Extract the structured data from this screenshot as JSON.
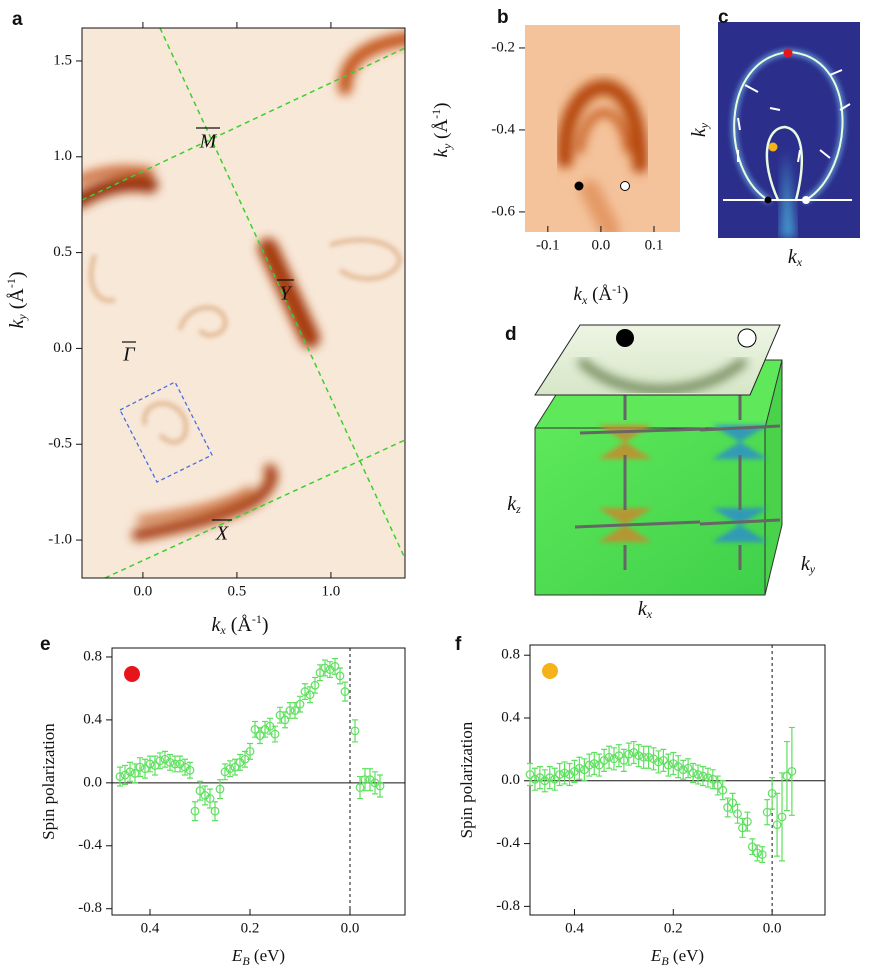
{
  "chart_data": [
    {
      "type": "image",
      "panel": "a",
      "xlim": [
        -0.324,
        1.394
      ],
      "xticks": [
        {
          "value": 0,
          "label": "0.0"
        },
        0.5,
        {
          "value": 1,
          "label": "1.0"
        }
      ],
      "ylim": [
        -1.198,
        1.672
      ],
      "yticks": [
        1.5,
        {
          "value": 1,
          "label": "1.0"
        },
        0.5,
        {
          "value": 0,
          "label": "0.0"
        },
        -0.5,
        {
          "value": -1,
          "label": "-1.0"
        }
      ],
      "xlabel": [
        "k",
        "x",
        " (Å",
        "-1",
        ")"
      ],
      "ylabel": [
        "k",
        "y",
        " (Å",
        "-1",
        ")"
      ],
      "annotations": [
        "M",
        "Y",
        "Γ",
        "X"
      ]
    },
    {
      "type": "image",
      "panel": "b",
      "xlim": [
        -0.143,
        0.149
      ],
      "xticks": [
        -0.1,
        {
          "value": 0,
          "label": "0.0"
        },
        0.1
      ],
      "ylim": [
        -0.649,
        -0.144
      ],
      "yticks": [
        -0.2,
        -0.4,
        -0.6
      ],
      "xlabel": [
        "k",
        "x",
        " (Å",
        "-1",
        ")"
      ],
      "ylabel": [
        "k",
        "y",
        " (Å",
        "-1",
        ")"
      ]
    },
    {
      "type": "image",
      "panel": "c",
      "xlabel": [
        "k",
        "x"
      ],
      "ylabel": [
        "k",
        "y"
      ]
    },
    {
      "type": "image",
      "panel": "d",
      "xlabel": [
        "k",
        "x"
      ],
      "ylabel": [
        "k",
        "y"
      ],
      "zlabel": [
        "k",
        "z"
      ]
    },
    {
      "type": "scatter",
      "panel": "e",
      "color": "#5ee05e",
      "indicator_color": "#e8141b",
      "xlim": [
        0.476,
        -0.11
      ],
      "xticks": [
        0.4,
        0.2,
        {
          "value": 0,
          "label": "0.0"
        }
      ],
      "ylim": [
        -0.84,
        0.857
      ],
      "yticks": [
        0.8,
        0.4,
        {
          "value": 0,
          "label": "0.0"
        },
        -0.4,
        -0.8
      ],
      "hline": 0,
      "vline": 0,
      "xlabel": [
        "E",
        "B",
        " (eV)"
      ],
      "ylabel": "Spin polarization",
      "x": [
        0.46,
        0.45,
        0.44,
        0.43,
        0.42,
        0.41,
        0.4,
        0.39,
        0.38,
        0.37,
        0.36,
        0.35,
        0.34,
        0.33,
        0.32,
        0.31,
        0.3,
        0.29,
        0.28,
        0.27,
        0.26,
        0.25,
        0.24,
        0.23,
        0.22,
        0.21,
        0.2,
        0.19,
        0.18,
        0.17,
        0.16,
        0.15,
        0.14,
        0.13,
        0.12,
        0.11,
        0.1,
        0.09,
        0.08,
        0.07,
        0.06,
        0.05,
        0.04,
        0.03,
        0.02,
        0.01,
        -0.01,
        -0.02,
        -0.03,
        -0.04,
        -0.05,
        -0.06
      ],
      "values": [
        0.04,
        0.05,
        0.07,
        0.06,
        0.1,
        0.09,
        0.12,
        0.11,
        0.14,
        0.15,
        0.13,
        0.12,
        0.12,
        0.1,
        0.08,
        -0.18,
        -0.05,
        -0.08,
        -0.1,
        -0.18,
        -0.04,
        0.07,
        0.09,
        0.1,
        0.13,
        0.15,
        0.2,
        0.34,
        0.3,
        0.34,
        0.36,
        0.31,
        0.43,
        0.4,
        0.46,
        0.46,
        0.5,
        0.58,
        0.56,
        0.62,
        0.7,
        0.73,
        0.72,
        0.74,
        0.68,
        0.58,
        0.33,
        -0.03,
        0.02,
        0.02,
        0.0,
        -0.02
      ],
      "errors": [
        0.06,
        0.06,
        0.06,
        0.06,
        0.06,
        0.06,
        0.05,
        0.06,
        0.05,
        0.05,
        0.05,
        0.05,
        0.05,
        0.05,
        0.05,
        0.06,
        0.06,
        0.06,
        0.06,
        0.06,
        0.06,
        0.05,
        0.05,
        0.05,
        0.05,
        0.05,
        0.05,
        0.05,
        0.05,
        0.05,
        0.05,
        0.05,
        0.05,
        0.05,
        0.05,
        0.05,
        0.05,
        0.05,
        0.05,
        0.05,
        0.05,
        0.05,
        0.05,
        0.05,
        0.05,
        0.06,
        0.07,
        0.07,
        0.07,
        0.07,
        0.07,
        0.07
      ]
    },
    {
      "type": "scatter",
      "panel": "f",
      "color": "#5ee05e",
      "indicator_color": "#f5b21a",
      "xlim": [
        0.49,
        -0.107
      ],
      "xticks": [
        0.4,
        0.2,
        {
          "value": 0,
          "label": "0.0"
        }
      ],
      "ylim": [
        -0.855,
        0.865
      ],
      "yticks": [
        0.8,
        0.4,
        {
          "value": 0,
          "label": "0.0"
        },
        -0.4,
        -0.8
      ],
      "hline": 0,
      "vline": 0,
      "xlabel": [
        "E",
        "B",
        " (eV)"
      ],
      "ylabel": "Spin polarization",
      "x": [
        0.49,
        0.48,
        0.47,
        0.46,
        0.45,
        0.44,
        0.43,
        0.42,
        0.41,
        0.4,
        0.39,
        0.38,
        0.37,
        0.36,
        0.35,
        0.34,
        0.33,
        0.32,
        0.31,
        0.3,
        0.29,
        0.28,
        0.27,
        0.26,
        0.25,
        0.24,
        0.23,
        0.22,
        0.21,
        0.2,
        0.19,
        0.18,
        0.17,
        0.16,
        0.15,
        0.14,
        0.13,
        0.12,
        0.11,
        0.1,
        0.09,
        0.08,
        0.07,
        0.06,
        0.05,
        0.04,
        0.03,
        0.02,
        0.01,
        0.0,
        -0.01,
        -0.02,
        -0.03,
        -0.04
      ],
      "values": [
        0.04,
        0.01,
        0.02,
        0.0,
        0.02,
        0.01,
        0.04,
        0.05,
        0.04,
        0.06,
        0.08,
        0.07,
        0.1,
        0.11,
        0.1,
        0.13,
        0.15,
        0.14,
        0.16,
        0.13,
        0.17,
        0.18,
        0.16,
        0.15,
        0.15,
        0.14,
        0.12,
        0.13,
        0.1,
        0.11,
        0.09,
        0.07,
        0.08,
        0.05,
        0.04,
        0.03,
        0.02,
        0.01,
        -0.03,
        -0.06,
        -0.17,
        -0.14,
        -0.21,
        -0.3,
        -0.26,
        -0.42,
        -0.46,
        -0.47,
        -0.2,
        -0.08,
        -0.28,
        -0.23,
        0.03,
        0.06
      ],
      "errors": [
        0.07,
        0.07,
        0.07,
        0.07,
        0.07,
        0.07,
        0.07,
        0.07,
        0.07,
        0.07,
        0.07,
        0.07,
        0.07,
        0.07,
        0.07,
        0.07,
        0.07,
        0.07,
        0.07,
        0.07,
        0.07,
        0.07,
        0.07,
        0.07,
        0.07,
        0.07,
        0.07,
        0.07,
        0.07,
        0.07,
        0.07,
        0.06,
        0.06,
        0.06,
        0.06,
        0.06,
        0.06,
        0.06,
        0.06,
        0.06,
        0.06,
        0.06,
        0.06,
        0.06,
        0.06,
        0.05,
        0.05,
        0.05,
        0.08,
        0.1,
        0.2,
        0.28,
        0.22,
        0.28
      ]
    }
  ],
  "panel_letters": [
    "a",
    "b",
    "c",
    "d",
    "e",
    "f"
  ]
}
